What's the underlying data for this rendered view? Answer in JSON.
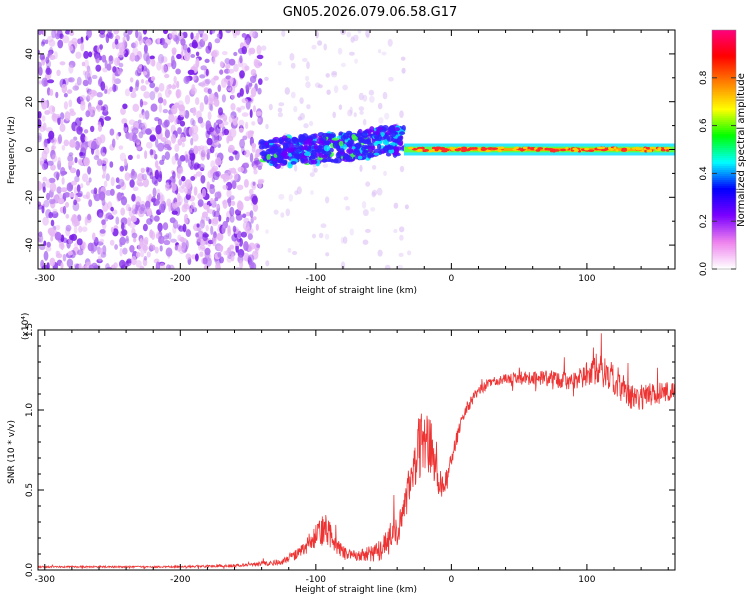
{
  "title": "GN05.2026.079.06.58.G17",
  "chart_data": [
    {
      "type": "heatmap",
      "xlabel": "Height of straight line (km)",
      "ylabel": "Frequency (Hz)",
      "xlim": [
        -305,
        165
      ],
      "ylim": [
        -50,
        50
      ],
      "xticks": [
        -300,
        -200,
        -100,
        0,
        100
      ],
      "xtick_labels": [
        "-300",
        "-200",
        "-100",
        "0",
        "100"
      ],
      "yticks": [
        -40,
        -20,
        0,
        20,
        40
      ],
      "ytick_labels": [
        "-40",
        "-20",
        "0",
        "20",
        "40"
      ],
      "colorbar": {
        "label": "Normalized spectral amplitude",
        "range": [
          0,
          1
        ],
        "ticks": [
          0.0,
          0.2,
          0.4,
          0.6,
          0.8
        ],
        "tick_labels": [
          "0.0",
          "0.2",
          "0.4",
          "0.6",
          "0.8"
        ],
        "colormap": [
          "#ffffff",
          "#ee82ee",
          "#7b00ff",
          "#0000ff",
          "#00ffff",
          "#00ff00",
          "#ffff00",
          "#ff8000",
          "#ff0000",
          "#ff0080"
        ]
      },
      "regions": [
        {
          "name": "noise",
          "x_range": [
            -305,
            -140
          ],
          "freq_range": [
            -50,
            50
          ],
          "amplitude": 0.1
        },
        {
          "name": "transition",
          "x_range": [
            -140,
            -35
          ],
          "center_freq_start": -2,
          "center_freq_end": 4,
          "amplitude": 0.35
        },
        {
          "name": "signal",
          "x_range": [
            -35,
            165
          ],
          "center_freq": 0,
          "amplitude": 0.9
        }
      ]
    },
    {
      "type": "line",
      "xlabel": "Height of straight line (km)",
      "ylabel": "SNR (10 * v/v)",
      "y_multiplier": "(x10⁴)",
      "xlim": [
        -305,
        165
      ],
      "ylim": [
        0,
        1.5
      ],
      "xticks": [
        -300,
        -200,
        -100,
        0,
        100
      ],
      "xtick_labels": [
        "-300",
        "-200",
        "-100",
        "0",
        "100"
      ],
      "yticks": [
        0.0,
        0.5,
        1.0,
        1.5
      ],
      "ytick_labels": [
        "0.0",
        "0.5",
        "1.0",
        "1.5"
      ],
      "color": "#ee3333",
      "x": [
        -305,
        -250,
        -200,
        -150,
        -125,
        -110,
        -100,
        -92,
        -85,
        -78,
        -70,
        -60,
        -50,
        -40,
        -35,
        -30,
        -25,
        -20,
        -15,
        -10,
        -5,
        0,
        10,
        20,
        30,
        50,
        70,
        90,
        100,
        110,
        120,
        130,
        140,
        150,
        165
      ],
      "values": [
        0.02,
        0.02,
        0.02,
        0.03,
        0.05,
        0.12,
        0.22,
        0.26,
        0.15,
        0.1,
        0.09,
        0.1,
        0.14,
        0.25,
        0.35,
        0.6,
        0.75,
        0.8,
        0.8,
        0.6,
        0.5,
        0.7,
        1.0,
        1.12,
        1.18,
        1.2,
        1.2,
        1.18,
        1.22,
        1.25,
        1.2,
        1.1,
        1.08,
        1.1,
        1.12
      ],
      "noise_amplitude": [
        0.005,
        0.005,
        0.005,
        0.01,
        0.02,
        0.04,
        0.08,
        0.1,
        0.05,
        0.04,
        0.03,
        0.05,
        0.08,
        0.1,
        0.1,
        0.15,
        0.2,
        0.2,
        0.2,
        0.15,
        0.1,
        0.05,
        0.04,
        0.03,
        0.03,
        0.04,
        0.05,
        0.06,
        0.08,
        0.1,
        0.1,
        0.09,
        0.08,
        0.07,
        0.06
      ]
    }
  ]
}
